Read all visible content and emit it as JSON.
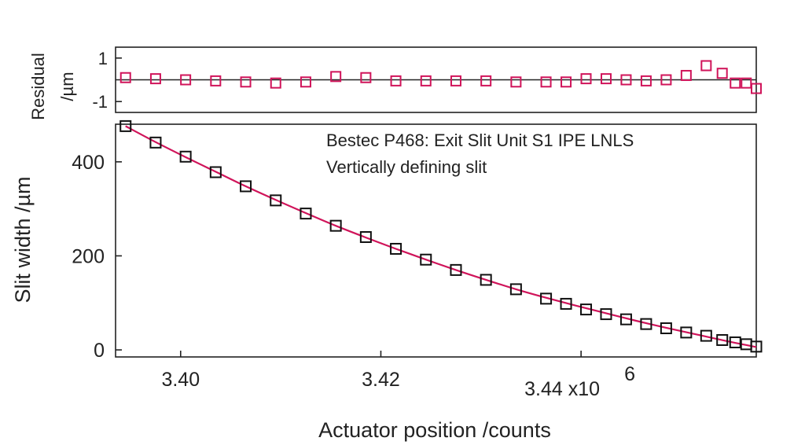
{
  "chart_data": [
    {
      "id": "residual",
      "type": "scatter",
      "title": "",
      "xlabel": "",
      "ylabel_lines": [
        "Residual",
        "/µm"
      ],
      "xlim": [
        3.3935,
        3.4575
      ],
      "ylim": [
        -1.5,
        1.5
      ],
      "y_ticks": [
        1,
        -1
      ],
      "y_tick_labels": [
        "1",
        "-1"
      ],
      "zero_line": true,
      "grid": false,
      "marker_color": "#d0145a",
      "line_color": "#222222",
      "x": [
        3.3945,
        3.3975,
        3.4005,
        3.4035,
        3.4065,
        3.4095,
        3.4125,
        3.4155,
        3.4185,
        3.4215,
        3.4245,
        3.4275,
        3.4305,
        3.4335,
        3.4365,
        3.4385,
        3.4405,
        3.4425,
        3.4445,
        3.4465,
        3.4485,
        3.4505,
        3.4525,
        3.4541,
        3.4554,
        3.4565,
        3.4575
      ],
      "y": [
        0.1,
        0.05,
        0.0,
        -0.05,
        -0.1,
        -0.15,
        -0.1,
        0.15,
        0.1,
        -0.05,
        -0.05,
        -0.05,
        -0.05,
        -0.1,
        -0.1,
        -0.1,
        0.05,
        0.05,
        0.0,
        -0.05,
        0.0,
        0.2,
        0.65,
        0.3,
        -0.15,
        -0.15,
        -0.4
      ]
    },
    {
      "id": "main",
      "type": "scatter",
      "title": "",
      "xlabel": "Actuator position /counts",
      "ylabel": "Slit width /µm",
      "xlim": [
        3.3935,
        3.4575
      ],
      "ylim": [
        -15,
        480
      ],
      "x_ticks": [
        3.4,
        3.42,
        3.44
      ],
      "x_tick_labels": [
        "3.40",
        "3.42",
        "3.44 x10"
      ],
      "x_exponent": "6",
      "y_ticks": [
        0,
        200,
        400
      ],
      "y_tick_labels": [
        "0",
        "200",
        "400"
      ],
      "grid": false,
      "annotation": [
        "Bestec P468: Exit Slit Unit S1 IPE LNLS",
        "Vertically defining slit"
      ],
      "marker_color": "#111111",
      "fit_color": "#d0145a",
      "x": [
        3.3945,
        3.3975,
        3.4005,
        3.4035,
        3.4065,
        3.4095,
        3.4125,
        3.4155,
        3.4185,
        3.4215,
        3.4245,
        3.4275,
        3.4305,
        3.4335,
        3.4365,
        3.4385,
        3.4405,
        3.4425,
        3.4445,
        3.4465,
        3.4485,
        3.4505,
        3.4525,
        3.4541,
        3.4554,
        3.4565,
        3.4575
      ],
      "y": [
        476,
        441,
        411,
        378,
        348,
        318,
        290,
        264,
        240,
        215,
        192,
        170,
        149,
        129,
        109,
        98,
        86,
        76,
        65,
        55,
        46,
        37,
        30,
        21,
        16,
        12,
        7
      ],
      "fit_x": [
        3.3945,
        3.3975,
        3.4005,
        3.4035,
        3.4065,
        3.4095,
        3.4125,
        3.4155,
        3.4185,
        3.4215,
        3.4245,
        3.4275,
        3.4305,
        3.4335,
        3.4365,
        3.4395,
        3.4425,
        3.4455,
        3.4485,
        3.4515,
        3.4545,
        3.4575
      ],
      "fit_y": [
        476,
        442,
        410,
        379,
        348,
        319,
        291,
        264,
        239,
        215,
        192,
        170,
        149,
        129,
        111,
        94,
        78,
        62,
        47,
        33,
        19,
        6
      ]
    }
  ]
}
